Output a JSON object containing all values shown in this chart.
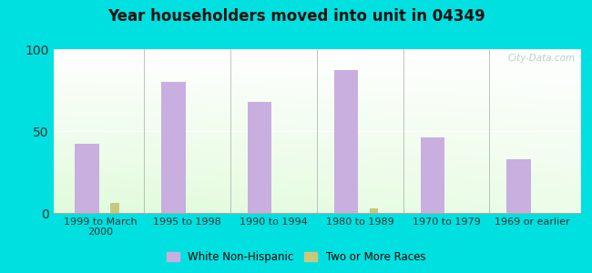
{
  "title": "Year householders moved into unit in 04349",
  "categories": [
    "1999 to March\n2000",
    "1995 to 1998",
    "1990 to 1994",
    "1980 to 1989",
    "1970 to 1979",
    "1969 or earlier"
  ],
  "white_non_hispanic": [
    42,
    80,
    68,
    87,
    46,
    33
  ],
  "two_or_more_races": [
    6,
    0,
    0,
    3,
    0,
    0
  ],
  "bar_color_white": "#c9aee0",
  "bar_color_two": "#c8c87a",
  "background_outer": "#00e0e0",
  "ylim": [
    0,
    100
  ],
  "yticks": [
    0,
    50,
    100
  ],
  "white_bar_width": 0.28,
  "two_bar_width": 0.1,
  "watermark": "City-Data.com"
}
